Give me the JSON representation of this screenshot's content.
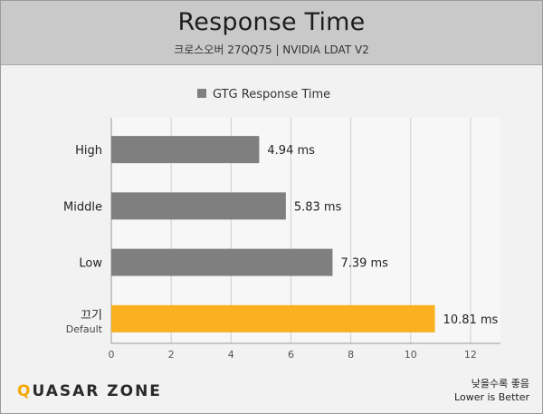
{
  "header": {
    "title": "Response Time",
    "subtitle": "크로스오버 27QQ75  |  NVIDIA LDAT V2"
  },
  "footer": {
    "brand_q": "Q",
    "brand_u": "U",
    "brand_rest": "ASAR ZONE",
    "note_ko": "낮을수록 좋음",
    "note_en": "Lower is Better"
  },
  "chart_data": {
    "type": "bar",
    "orientation": "horizontal",
    "categories": [
      "High",
      "Middle",
      "Low",
      "끄기"
    ],
    "category_sublabels": [
      "",
      "",
      "",
      "Default"
    ],
    "series": [
      {
        "name": "GTG Response Time",
        "values": [
          4.94,
          5.83,
          7.39,
          10.81
        ],
        "labels": [
          "4.94 ms",
          "5.83 ms",
          "7.39 ms",
          "10.81 ms"
        ]
      }
    ],
    "unit": "ms",
    "xlim": [
      0,
      13
    ],
    "xticks": [
      0,
      2,
      4,
      6,
      8,
      10,
      12
    ],
    "grid": true,
    "legend": "top-center",
    "colors": {
      "default": "#7f7f7f",
      "highlight": "#fbb01f",
      "highlight_index": 3
    }
  }
}
